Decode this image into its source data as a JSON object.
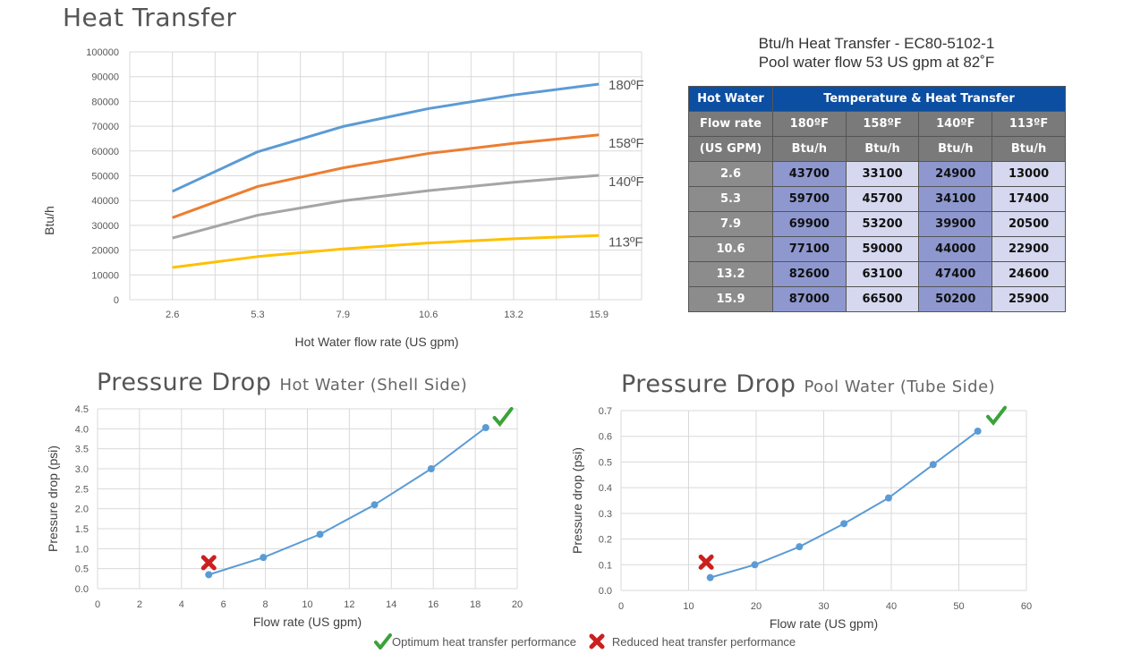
{
  "heat_transfer": {
    "title": "Heat Transfer",
    "colors": {
      "180": "#5b9bd5",
      "158": "#ed7d31",
      "140": "#a5a5a5",
      "113": "#ffc000"
    }
  },
  "table": {
    "caption_line1": "Btu/h Heat Transfer - EC80-5102-1",
    "caption_line2": "Pool water flow 53 US gpm at 82˚F",
    "header_hot_water": "Hot Water",
    "header_temp": "Temperature & Heat Transfer",
    "header_flow_rate": "Flow rate",
    "header_us_gpm": "(US GPM)",
    "temps": [
      "180ºF",
      "158ºF",
      "140ºF",
      "113ºF"
    ],
    "unit": "Btu/h",
    "rows": [
      {
        "flow": "2.6",
        "values": [
          "43700",
          "33100",
          "24900",
          "13000"
        ]
      },
      {
        "flow": "5.3",
        "values": [
          "59700",
          "45700",
          "34100",
          "17400"
        ]
      },
      {
        "flow": "7.9",
        "values": [
          "69900",
          "53200",
          "39900",
          "20500"
        ]
      },
      {
        "flow": "10.6",
        "values": [
          "77100",
          "59000",
          "44000",
          "22900"
        ]
      },
      {
        "flow": "13.2",
        "values": [
          "82600",
          "63100",
          "47400",
          "24600"
        ]
      },
      {
        "flow": "15.9",
        "values": [
          "87000",
          "66500",
          "50200",
          "25900"
        ]
      }
    ]
  },
  "pressure_hot": {
    "title_main": "Pressure Drop",
    "title_sub": "Hot Water (Shell Side)"
  },
  "pressure_pool": {
    "title_main": "Pressure Drop",
    "title_sub": "Pool Water (Tube Side)"
  },
  "legend": {
    "optimum": "Optimum heat transfer performance",
    "reduced": "Reduced heat transfer performance",
    "optimum_color": "#3aa33a",
    "reduced_color": "#cc1f1f"
  },
  "chart_data": [
    {
      "type": "line",
      "title": "Heat Transfer",
      "xlabel": "Hot Water flow rate (US gpm)",
      "ylabel": "Btu/h",
      "categories": [
        "2.6",
        "5.3",
        "7.9",
        "10.6",
        "13.2",
        "15.9"
      ],
      "ylim": [
        0,
        100000
      ],
      "yticks": [
        "0",
        "10000",
        "20000",
        "30000",
        "40000",
        "50000",
        "60000",
        "70000",
        "80000",
        "90000",
        "100000"
      ],
      "grid": true,
      "series": [
        {
          "name": "180ºF",
          "values": [
            43700,
            59700,
            69900,
            77100,
            82600,
            87000
          ]
        },
        {
          "name": "158ºF",
          "values": [
            33100,
            45700,
            53200,
            59000,
            63100,
            66500
          ]
        },
        {
          "name": "140ºF",
          "values": [
            24900,
            34100,
            39900,
            44000,
            47400,
            50200
          ]
        },
        {
          "name": "113ºF",
          "values": [
            13000,
            17400,
            20500,
            22900,
            24600,
            25900
          ]
        }
      ]
    },
    {
      "type": "line",
      "title": "Pressure Drop Hot Water (Shell Side)",
      "xlabel": "Flow rate (US gpm)",
      "ylabel": "Pressure drop (psi)",
      "xlim": [
        0,
        20
      ],
      "ylim": [
        0,
        4.5
      ],
      "xticks": [
        "0",
        "2",
        "4",
        "6",
        "8",
        "10",
        "12",
        "14",
        "16",
        "18",
        "20"
      ],
      "yticks": [
        "0.0",
        "0.5",
        "1.0",
        "1.5",
        "2.0",
        "2.5",
        "3.0",
        "3.5",
        "4.0",
        "4.5"
      ],
      "grid": true,
      "x": [
        5.3,
        7.9,
        10.6,
        13.2,
        15.9,
        18.5
      ],
      "y": [
        0.35,
        0.78,
        1.36,
        2.1,
        3.0,
        4.03
      ],
      "annotations": [
        {
          "type": "reduced",
          "x": 5.3,
          "y": 0.65
        },
        {
          "type": "optimum",
          "x": 19.3,
          "y": 4.3
        }
      ]
    },
    {
      "type": "line",
      "title": "Pressure Drop Pool Water (Tube Side)",
      "xlabel": "Flow rate (US gpm)",
      "ylabel": "Pressure drop (psi)",
      "xlim": [
        0,
        60
      ],
      "ylim": [
        0,
        0.7
      ],
      "xticks": [
        "0",
        "10",
        "20",
        "30",
        "40",
        "50",
        "60"
      ],
      "yticks": [
        "0.0",
        "0.1",
        "0.2",
        "0.3",
        "0.4",
        "0.5",
        "0.6",
        "0.7"
      ],
      "grid": true,
      "x": [
        13.2,
        19.8,
        26.4,
        33.0,
        39.6,
        46.2,
        52.8
      ],
      "y": [
        0.05,
        0.1,
        0.17,
        0.26,
        0.36,
        0.49,
        0.62
      ],
      "annotations": [
        {
          "type": "reduced",
          "x": 12.6,
          "y": 0.11
        },
        {
          "type": "optimum",
          "x": 55.5,
          "y": 0.68
        }
      ]
    }
  ]
}
